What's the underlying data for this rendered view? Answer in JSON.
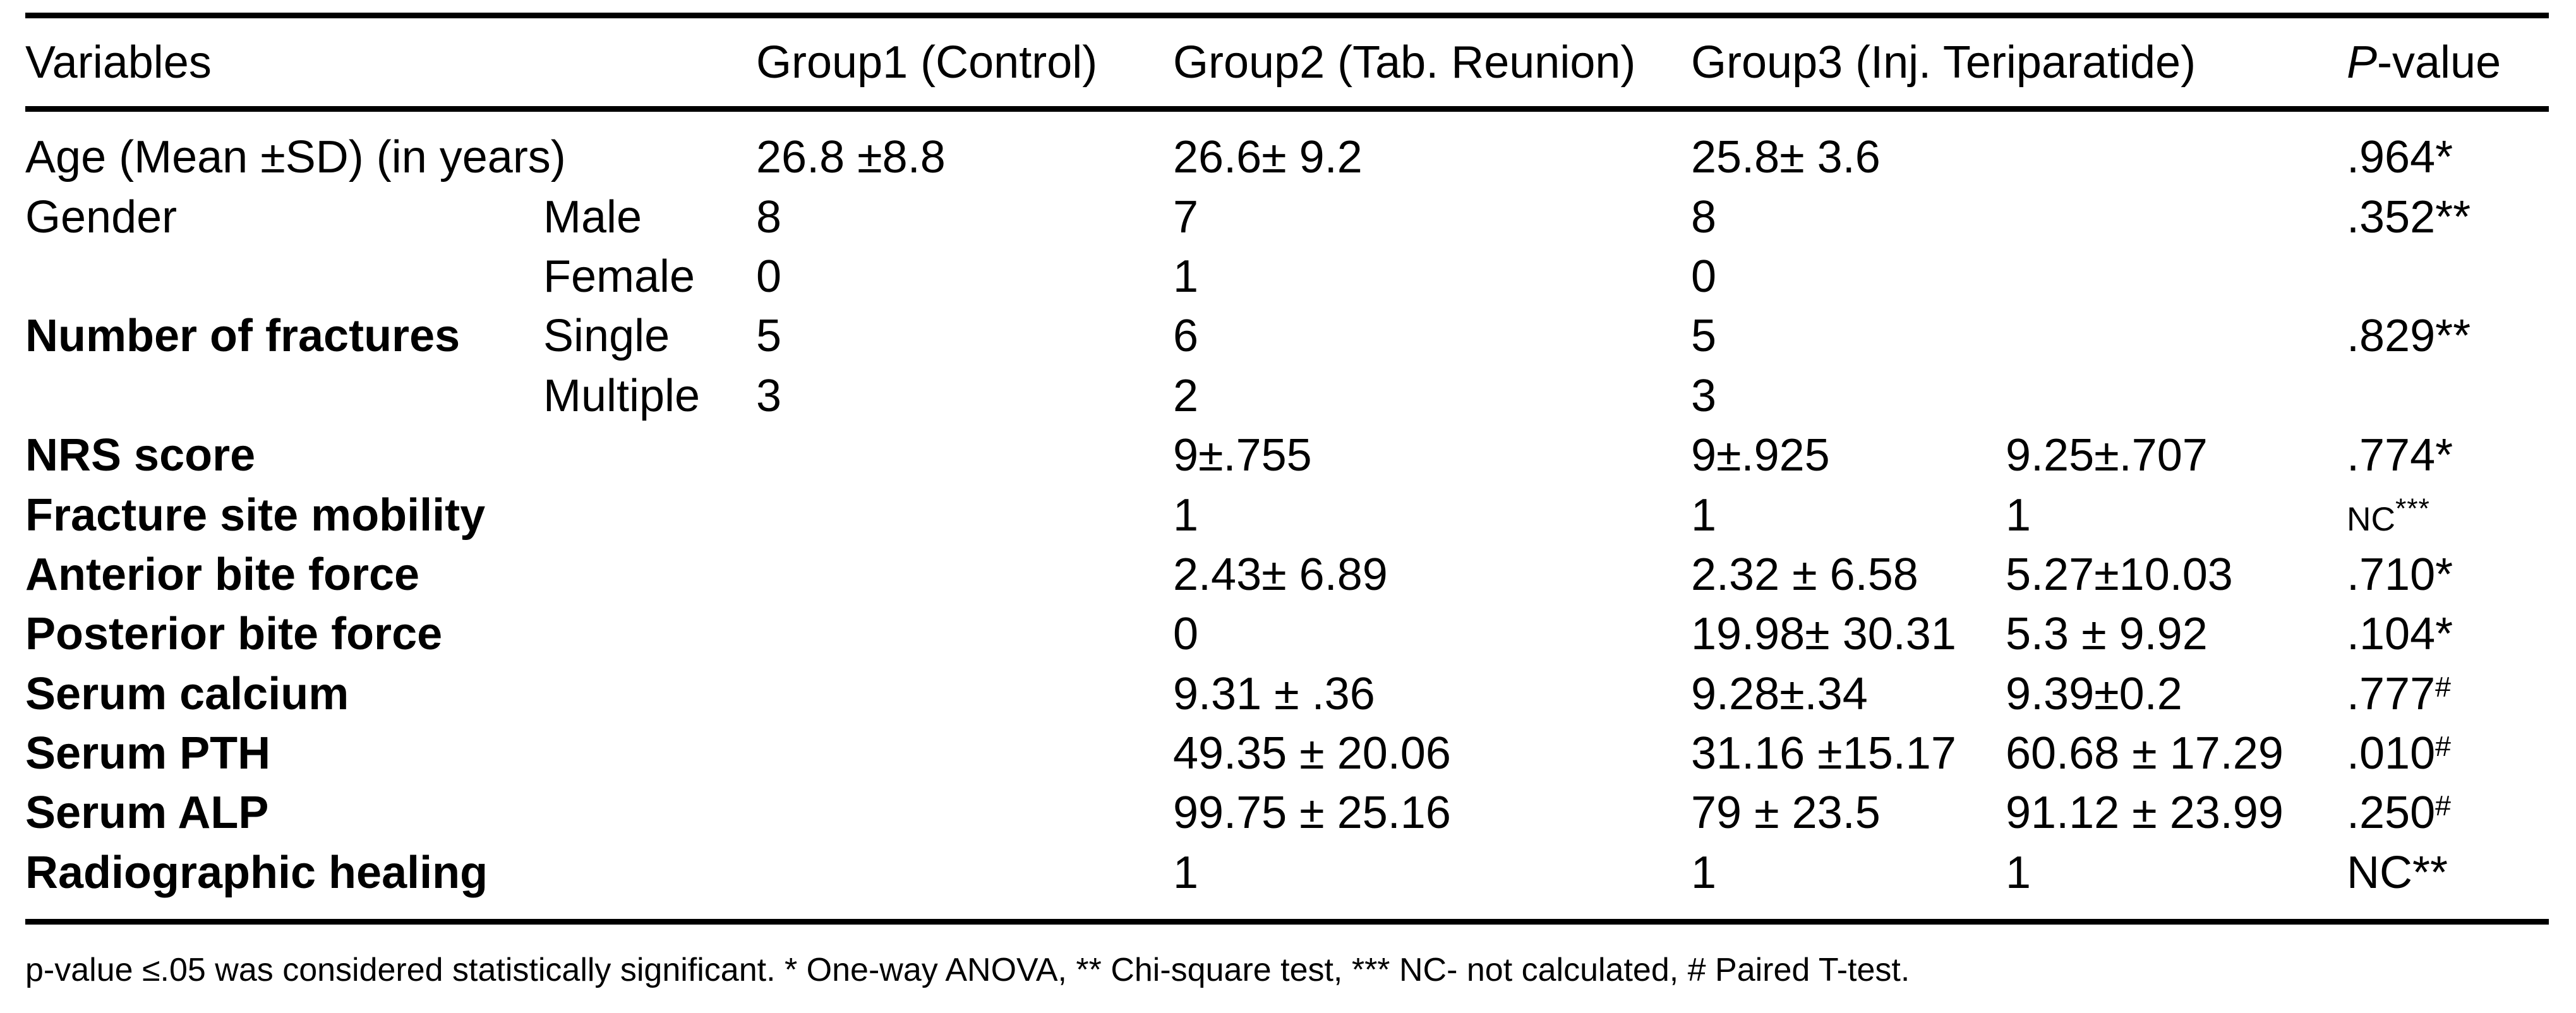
{
  "table": {
    "headers": {
      "variables": "Variables",
      "group1": "Group1 (Control)",
      "group2": "Group2 (Tab. Reunion)",
      "group3": "Group3 (Inj. Teriparatide)",
      "pvalue_italic": "P",
      "pvalue_rest": "-value"
    },
    "rows": [
      {
        "label": "Age (Mean ±SD) (in years)",
        "bold": false,
        "sub": "",
        "c1": "26.8 ±8.8",
        "c2": "26.6± 9.2",
        "c3": "25.8± 3.6",
        "c4": "",
        "p": ".964*",
        "p_sup": "",
        "p_small": false
      },
      {
        "label": "Gender",
        "bold": false,
        "sub": "Male",
        "c1": "8",
        "c2": "7",
        "c3": "8",
        "c4": "",
        "p": ".352**",
        "p_sup": "",
        "p_small": false
      },
      {
        "label": "",
        "bold": false,
        "sub": "Female",
        "c1": "0",
        "c2": "1",
        "c3": "0",
        "c4": "",
        "p": "",
        "p_sup": "",
        "p_small": false
      },
      {
        "label": "Number of fractures",
        "bold": true,
        "sub": "Single",
        "c1": "5",
        "c2": "6",
        "c3": "5",
        "c4": "",
        "p": ".829**",
        "p_sup": "",
        "p_small": false
      },
      {
        "label": "",
        "bold": false,
        "sub": "Multiple",
        "c1": "3",
        "c2": "2",
        "c3": "3",
        "c4": "",
        "p": "",
        "p_sup": "",
        "p_small": false
      },
      {
        "label": "NRS score",
        "bold": true,
        "sub": "",
        "c1": "",
        "c2": "9±.755",
        "c3": "9±.925",
        "c4": "9.25±.707",
        "p": ".774*",
        "p_sup": "",
        "p_small": false
      },
      {
        "label": "Fracture site mobility",
        "bold": true,
        "sub": "",
        "c1": "",
        "c2": "1",
        "c3": "1",
        "c4": "1",
        "p": "NC",
        "p_sup": "***",
        "p_small": true
      },
      {
        "label": "Anterior bite force",
        "bold": true,
        "sub": "",
        "c1": "",
        "c2": "2.43± 6.89",
        "c3": "2.32 ± 6.58",
        "c4": "5.27±10.03",
        "p": ".710*",
        "p_sup": "",
        "p_small": false
      },
      {
        "label": "Posterior bite force",
        "bold": true,
        "sub": "",
        "c1": "",
        "c2": "0",
        "c3": "19.98± 30.31",
        "c4": "5.3 ± 9.92",
        "p": ".104*",
        "p_sup": "",
        "p_small": false
      },
      {
        "label": "Serum calcium",
        "bold": true,
        "sub": "",
        "c1": "",
        "c2": "9.31 ± .36",
        "c3": "9.28±.34",
        "c4": "9.39±0.2",
        "p": ".777",
        "p_sup": "#",
        "p_small": false
      },
      {
        "label": "Serum PTH",
        "bold": true,
        "sub": "",
        "c1": "",
        "c2": "49.35 ± 20.06",
        "c3": "31.16 ±15.17",
        "c4": "60.68 ± 17.29",
        "p": ".010",
        "p_sup": "#",
        "p_small": false
      },
      {
        "label": "Serum ALP",
        "bold": true,
        "sub": "",
        "c1": "",
        "c2": "99.75 ± 25.16",
        "c3": "79 ± 23.5",
        "c4": "91.12 ± 23.99",
        "p": ".250",
        "p_sup": "#",
        "p_small": false
      },
      {
        "label": "Radiographic healing",
        "bold": true,
        "sub": "",
        "c1": "",
        "c2": "1",
        "c3": "1",
        "c4": "1",
        "p": "NC**",
        "p_sup": "",
        "p_small": false
      }
    ],
    "footnote": "p-value ≤.05 was considered statistically significant. * One-way ANOVA, ** Chi-square test, *** NC- not calculated, # Paired T-test."
  },
  "colors": {
    "text": "#000000",
    "background": "#ffffff",
    "rule": "#000000"
  }
}
